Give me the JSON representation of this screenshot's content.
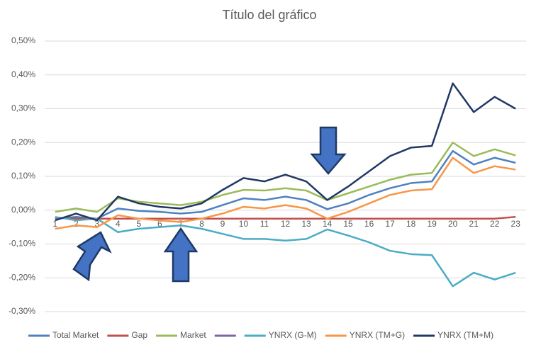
{
  "chart_data": {
    "type": "line",
    "title": "Título del gráfico",
    "categories": [
      "1",
      "2",
      "3",
      "4",
      "5",
      "6",
      "7",
      "8",
      "9",
      "10",
      "11",
      "12",
      "13",
      "14",
      "15",
      "16",
      "17",
      "18",
      "19",
      "20",
      "21",
      "22",
      "23"
    ],
    "ylim": [
      -0.3,
      0.5
    ],
    "yticks": [
      {
        "value": -0.3,
        "label": "-0,30%"
      },
      {
        "value": -0.2,
        "label": "-0,20%"
      },
      {
        "value": -0.1,
        "label": "-0,10%"
      },
      {
        "value": 0,
        "label": "0,00%"
      },
      {
        "value": 0.1,
        "label": "0,10%"
      },
      {
        "value": 0.2,
        "label": "0,20%"
      },
      {
        "value": 0.3,
        "label": "0,30%"
      },
      {
        "value": 0.4,
        "label": "0,40%"
      },
      {
        "value": 0.5,
        "label": "0,50%"
      }
    ],
    "grid": true,
    "legend": "bottom",
    "series": [
      {
        "name": "Total Market",
        "color": "#4f81bd",
        "values": [
          -0.025,
          -0.02,
          -0.025,
          0.005,
          -0.002,
          -0.005,
          -0.01,
          -0.005,
          0.015,
          0.035,
          0.03,
          0.04,
          0.03,
          0.003,
          0.02,
          0.045,
          0.065,
          0.08,
          0.085,
          0.175,
          0.135,
          0.155,
          0.14
        ]
      },
      {
        "name": "Gap",
        "color": "#c0504d",
        "values": [
          -0.022,
          -0.025,
          -0.025,
          -0.025,
          -0.025,
          -0.025,
          -0.025,
          -0.025,
          -0.025,
          -0.025,
          -0.025,
          -0.025,
          -0.025,
          -0.025,
          -0.025,
          -0.025,
          -0.025,
          -0.025,
          -0.025,
          -0.025,
          -0.025,
          -0.025,
          -0.02
        ]
      },
      {
        "name": "Market",
        "color": "#9bbb59",
        "values": [
          -0.005,
          0.005,
          -0.005,
          0.035,
          0.025,
          0.02,
          0.015,
          0.025,
          0.045,
          0.06,
          0.058,
          0.065,
          0.058,
          0.03,
          0.05,
          0.07,
          0.09,
          0.105,
          0.11,
          0.2,
          0.16,
          0.18,
          0.162
        ]
      },
      {
        "color": "#8064a2"
      },
      {
        "name": "YNRX (G-M)",
        "color": "#4bacc6",
        "values": [
          -0.02,
          -0.03,
          -0.025,
          -0.065,
          -0.055,
          -0.05,
          -0.045,
          -0.055,
          -0.07,
          -0.085,
          -0.085,
          -0.09,
          -0.085,
          -0.057,
          -0.075,
          -0.095,
          -0.12,
          -0.13,
          -0.133,
          -0.225,
          -0.185,
          -0.205,
          -0.185
        ]
      },
      {
        "name": "YNRX (TM+G)",
        "color": "#f79646",
        "values": [
          -0.055,
          -0.045,
          -0.05,
          -0.015,
          -0.025,
          -0.03,
          -0.035,
          -0.025,
          -0.01,
          0.01,
          0.005,
          0.015,
          0.005,
          -0.025,
          -0.005,
          0.02,
          0.045,
          0.058,
          0.062,
          0.155,
          0.11,
          0.13,
          0.12
        ]
      },
      {
        "name": "YNRX (TM+M)",
        "color": "#203864",
        "values": [
          -0.03,
          -0.01,
          -0.03,
          0.04,
          0.02,
          0.01,
          0.005,
          0.02,
          0.06,
          0.095,
          0.085,
          0.105,
          0.085,
          0.03,
          0.07,
          0.115,
          0.16,
          0.185,
          0.19,
          0.375,
          0.29,
          0.335,
          0.3
        ]
      }
    ]
  }
}
